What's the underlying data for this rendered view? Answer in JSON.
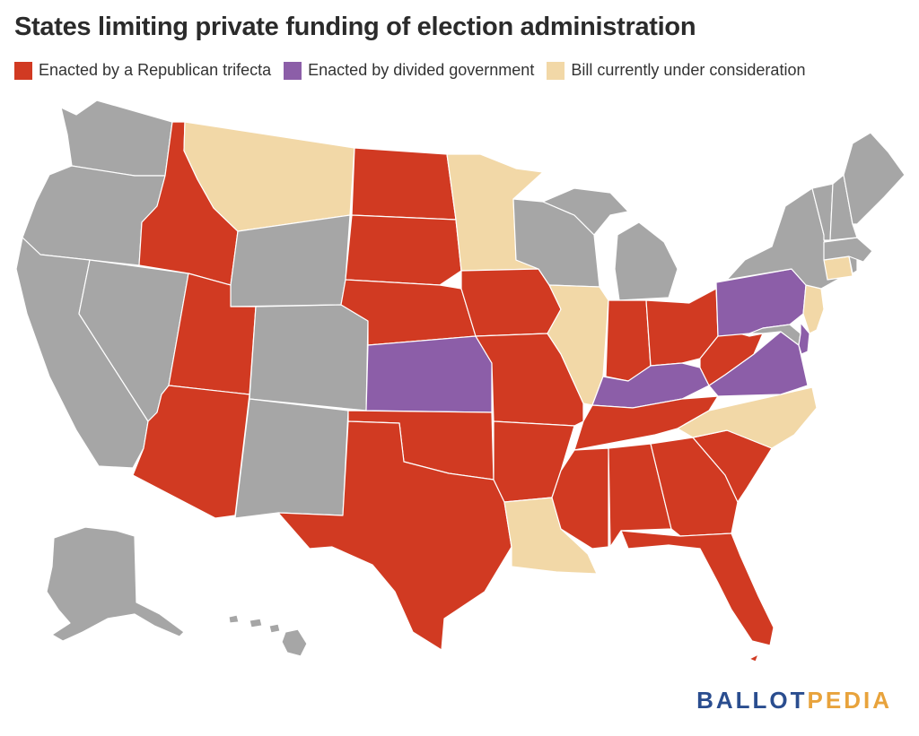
{
  "title": "States limiting private funding of election administration",
  "legend": [
    {
      "label": "Enacted by a Republican trifecta",
      "color": "#d13a22"
    },
    {
      "label": "Enacted by divided government",
      "color": "#8c5ea8"
    },
    {
      "label": "Bill currently under consideration",
      "color": "#f2d8a7"
    }
  ],
  "colors": {
    "republican": "#d13a22",
    "divided": "#8c5ea8",
    "pending": "#f2d8a7",
    "none": "#a6a6a6"
  },
  "logo": {
    "part1": "BALLOT",
    "part2": "PEDIA"
  },
  "map_data": {
    "type": "choropleth-us-states",
    "states": {
      "WA": "none",
      "OR": "none",
      "CA": "none",
      "NV": "none",
      "ID": "republican",
      "MT": "pending",
      "WY": "none",
      "UT": "republican",
      "AZ": "republican",
      "CO": "none",
      "NM": "none",
      "ND": "republican",
      "SD": "republican",
      "NE": "republican",
      "KS": "divided",
      "OK": "republican",
      "TX": "republican",
      "MN": "pending",
      "IA": "republican",
      "MO": "republican",
      "AR": "republican",
      "LA": "pending",
      "WI": "none",
      "IL": "pending",
      "MI": "none",
      "IN": "republican",
      "OH": "republican",
      "KY": "divided",
      "TN": "republican",
      "MS": "republican",
      "AL": "republican",
      "GA": "republican",
      "FL": "republican",
      "SC": "republican",
      "NC": "pending",
      "VA": "divided",
      "WV": "republican",
      "PA": "divided",
      "NY": "none",
      "NJ": "pending",
      "DE": "divided",
      "MD": "none",
      "CT": "pending",
      "RI": "none",
      "MA": "none",
      "VT": "none",
      "NH": "none",
      "ME": "none",
      "AK": "none",
      "HI": "none"
    }
  }
}
